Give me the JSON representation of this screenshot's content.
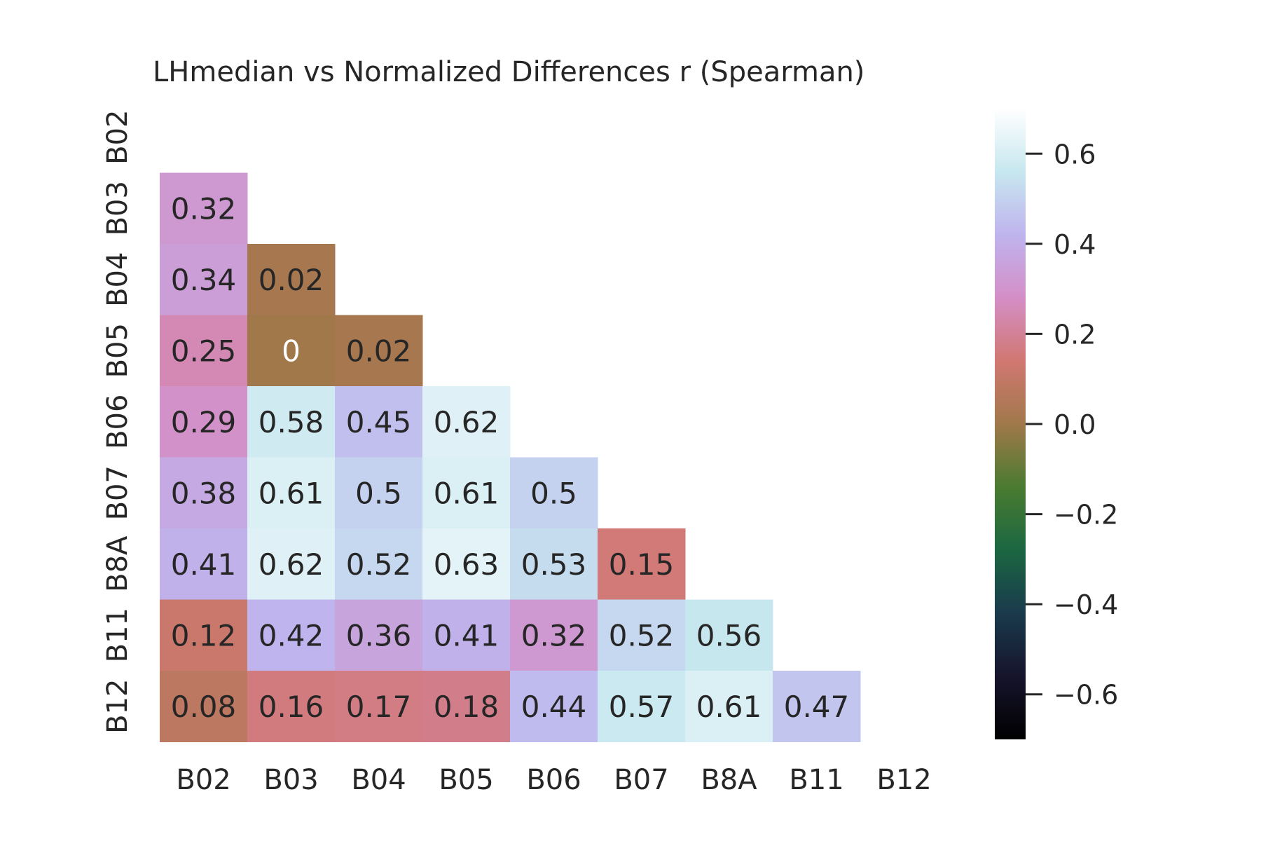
{
  "chart_data": {
    "type": "heatmap",
    "title": "LHmedian vs Normalized Differences r (Spearman)",
    "x_categories": [
      "B02",
      "B03",
      "B04",
      "B05",
      "B06",
      "B07",
      "B8A",
      "B11",
      "B12"
    ],
    "y_categories": [
      "B02",
      "B03",
      "B04",
      "B05",
      "B06",
      "B07",
      "B8A",
      "B11",
      "B12"
    ],
    "mask": "upper-triangle-including-diagonal",
    "values": [
      [
        null,
        null,
        null,
        null,
        null,
        null,
        null,
        null,
        null
      ],
      [
        0.32,
        null,
        null,
        null,
        null,
        null,
        null,
        null,
        null
      ],
      [
        0.34,
        0.02,
        null,
        null,
        null,
        null,
        null,
        null,
        null
      ],
      [
        0.25,
        0,
        0.02,
        null,
        null,
        null,
        null,
        null,
        null
      ],
      [
        0.29,
        0.58,
        0.45,
        0.62,
        null,
        null,
        null,
        null,
        null
      ],
      [
        0.38,
        0.61,
        0.5,
        0.61,
        0.5,
        null,
        null,
        null,
        null
      ],
      [
        0.41,
        0.62,
        0.52,
        0.63,
        0.53,
        0.15,
        null,
        null,
        null
      ],
      [
        0.12,
        0.42,
        0.36,
        0.41,
        0.32,
        0.52,
        0.56,
        null,
        null
      ],
      [
        0.08,
        0.16,
        0.17,
        0.18,
        0.44,
        0.57,
        0.61,
        0.47,
        null
      ]
    ],
    "colorbar": {
      "range": [
        -0.7,
        0.7
      ],
      "ticks": [
        -0.6,
        -0.4,
        -0.2,
        0.0,
        0.2,
        0.4,
        0.6
      ],
      "tick_labels": [
        "−0.6",
        "−0.4",
        "−0.2",
        "0.0",
        "0.2",
        "0.4",
        "0.6"
      ],
      "colormap": "cubehelix",
      "stops": [
        [
          0.0,
          "#000000"
        ],
        [
          0.1,
          "#16142c"
        ],
        [
          0.2,
          "#1a3a4c"
        ],
        [
          0.3,
          "#1b6742"
        ],
        [
          0.4,
          "#4a7b30"
        ],
        [
          0.5,
          "#a0784a"
        ],
        [
          0.6,
          "#d17872"
        ],
        [
          0.7,
          "#d48ec6"
        ],
        [
          0.8,
          "#bfb4ee"
        ],
        [
          0.9,
          "#c7e7ef"
        ],
        [
          1.0,
          "#ffffff"
        ]
      ]
    },
    "grid": false,
    "legend": "colorbar-right"
  }
}
